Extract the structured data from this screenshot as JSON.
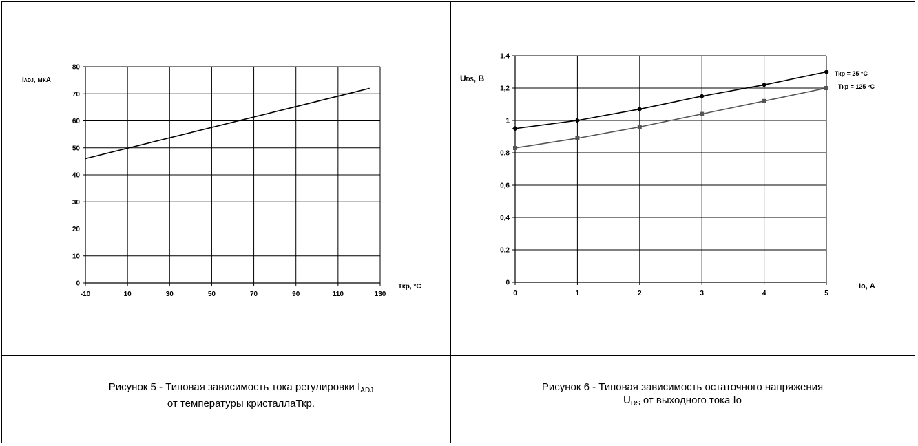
{
  "chart_data": [
    {
      "type": "line",
      "title": "",
      "ylabel_main": "I",
      "ylabel_sub": "ADJ",
      "ylabel_rest": ", мкА",
      "xlabel": "Ткр, °С",
      "xlim": [
        -10,
        130
      ],
      "ylim": [
        0,
        80
      ],
      "xticks": [
        -10,
        10,
        30,
        50,
        70,
        90,
        110,
        130
      ],
      "yticks": [
        0,
        10,
        20,
        30,
        40,
        50,
        60,
        70,
        80
      ],
      "xtick_labels": [
        "-10",
        "10",
        "30",
        "50",
        "70",
        "90",
        "110",
        "130"
      ],
      "ytick_labels": [
        "0",
        "10",
        "20",
        "30",
        "40",
        "50",
        "60",
        "70",
        "80"
      ],
      "grid": true,
      "series": [
        {
          "x": [
            -10,
            125
          ],
          "y": [
            46,
            72
          ],
          "color": "#000000",
          "markers": false
        }
      ]
    },
    {
      "type": "line",
      "title": "",
      "ylabel_main": "U",
      "ylabel_sub": "DS",
      "ylabel_rest": ", В",
      "xlabel": "Io, А",
      "xlim": [
        0,
        5
      ],
      "ylim": [
        0,
        1.4
      ],
      "xticks": [
        0,
        1,
        2,
        3,
        4,
        5
      ],
      "yticks": [
        0,
        0.2,
        0.4,
        0.6,
        0.8,
        1.0,
        1.2,
        1.4
      ],
      "xtick_labels": [
        "0",
        "1",
        "2",
        "3",
        "4",
        "5"
      ],
      "ytick_labels": [
        "0",
        "0,2",
        "0,4",
        "0,6",
        "0,8",
        "1",
        "1,2",
        "1,4"
      ],
      "grid": true,
      "series": [
        {
          "name": "Ткр = 25 °С",
          "x": [
            0,
            1,
            2,
            3,
            4,
            5
          ],
          "y": [
            0.95,
            1.0,
            1.07,
            1.15,
            1.22,
            1.3
          ],
          "color": "#000000",
          "marker": "diamond"
        },
        {
          "name": "Ткр = 125 °С",
          "x": [
            0,
            1,
            2,
            3,
            4,
            5
          ],
          "y": [
            0.83,
            0.89,
            0.96,
            1.04,
            1.12,
            1.2
          ],
          "color": "#555555",
          "marker": "square"
        }
      ]
    }
  ],
  "captions": {
    "left_line1_a": "Рисунок 5 - Типовая зависимость тока регулировки I",
    "left_line1_sub": "ADJ",
    "left_line2": "от температуры кристаллаТкр.",
    "right_line1": "Рисунок 6 - Типовая  зависимость остаточного напряжения",
    "right_line2_a": "U",
    "right_line2_sub": "DS",
    "right_line2_b": " от выходного тока Io"
  }
}
